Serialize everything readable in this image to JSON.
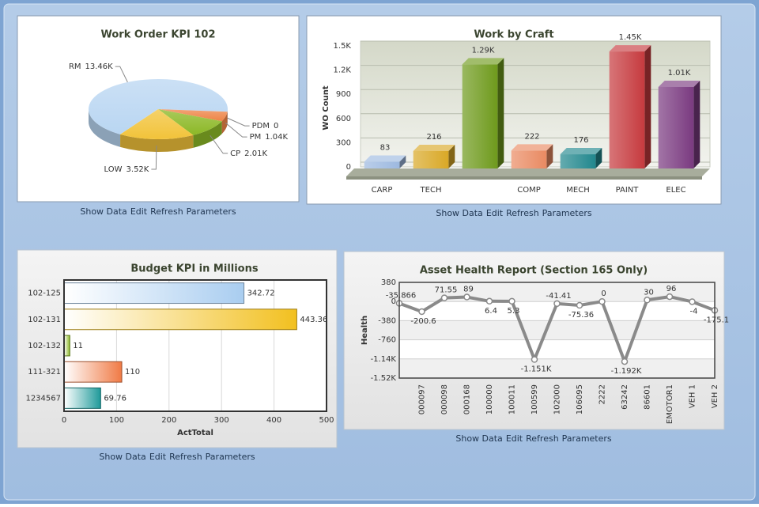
{
  "chart_data": [
    {
      "type": "pie",
      "title": "Work Order KPI 102",
      "categories": [
        "RM",
        "PDM",
        "PM",
        "CP",
        "LOW"
      ],
      "values": [
        13460,
        0,
        1040,
        2010,
        3520
      ],
      "value_labels": [
        "13.46K",
        "0",
        "1.04K",
        "2.01K",
        "3.52K"
      ],
      "colors": [
        "#b9d6f2",
        "#e56a30",
        "#ee8447",
        "#8cb826",
        "#f2c33a"
      ]
    },
    {
      "type": "bar",
      "title": "Work by Craft",
      "y_label": "WO Count",
      "categories": [
        "CARP",
        "TECH",
        null,
        "COMP",
        "MECH",
        "PAINT",
        "ELEC"
      ],
      "values": [
        83,
        216,
        1290,
        222,
        176,
        1450,
        1010
      ],
      "value_labels": [
        "83",
        "216",
        "1.29K",
        "222",
        "176",
        "1.45K",
        "1.01K"
      ],
      "colors": [
        "#9db9e0",
        "#d9a826",
        "#6e9a1c",
        "#e98a62",
        "#21878d",
        "#c63a3e",
        "#7a3a80"
      ],
      "ylim": [
        0,
        1500
      ],
      "yticks": [
        0,
        300,
        600,
        900,
        {
          "value": 1200,
          "label": "1.2K"
        },
        {
          "value": 1500,
          "label": "1.5K"
        }
      ],
      "grid": true
    },
    {
      "type": "bar",
      "horizontal": true,
      "title": "Budget KPI in Millions",
      "x_label": "ActTotal",
      "categories": [
        "102-125",
        "102-131",
        "102-132",
        "111-321",
        "1234567"
      ],
      "values": [
        342.72,
        443.36,
        11,
        110,
        69.76
      ],
      "colors": [
        "#a9cdf0",
        "#f2c01f",
        "#8cb826",
        "#f07a45",
        "#1f9a9a"
      ],
      "xlim": [
        0,
        500
      ],
      "xticks": [
        0,
        100,
        200,
        300,
        400,
        500
      ],
      "grid": true
    },
    {
      "type": "line",
      "title": "Asset Health Report (Section 165 Only)",
      "y_label": "Health",
      "categories": [
        null,
        "000097",
        "000098",
        "000168",
        "100000",
        "100011",
        "100599",
        "102000",
        "106095",
        "2222",
        "63242",
        "86601",
        "EMOTOR1",
        "VEH 1",
        "VEH 2"
      ],
      "values": [
        -35.866,
        -200.6,
        71.55,
        89,
        6.4,
        5.3,
        -1151,
        -41.41,
        -75.36,
        0,
        -1192,
        30,
        96,
        -4,
        -175.1
      ],
      "value_labels": [
        "-35.866",
        "-200.6",
        "71.55",
        "89",
        "6.4",
        "5.3",
        "-1.151K",
        "-41.41",
        "-75.36",
        "0",
        "-1.192K",
        "30",
        "96",
        "-4",
        "-175.1"
      ],
      "color": "#8a8a8a",
      "ylim": [
        -1520,
        380
      ],
      "yticks": [
        380,
        0,
        -380,
        -760,
        {
          "value": -1140,
          "label": "-1.14K"
        },
        {
          "value": -1520,
          "label": "-1.52K"
        }
      ],
      "grid": true
    }
  ],
  "toolbars": [
    [
      "Show Data",
      "Edit",
      "Refresh",
      "Parameters"
    ],
    [
      "Show Data",
      "Edit",
      "Refresh",
      "Parameters"
    ],
    [
      "Show Data",
      "Edit",
      "Refresh",
      "Parameters"
    ],
    [
      "Show Data",
      "Edit",
      "Refresh",
      "Parameters"
    ]
  ]
}
